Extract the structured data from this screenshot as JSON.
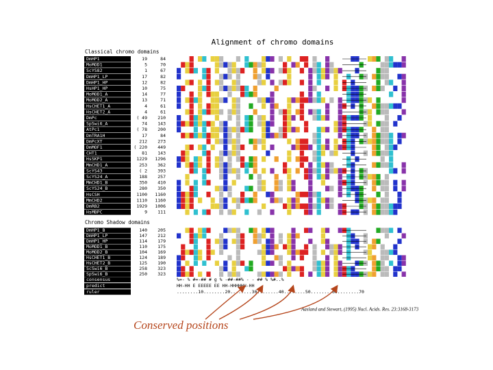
{
  "figure": {
    "title": "Alignment of chromo domains",
    "classical_label": "Classical chromo domains",
    "shadow_label": "Chromo Shadow domains",
    "classical_rows": [
      [
        "DmHP1",
        "19",
        "84"
      ],
      [
        "MoMOD1",
        "5",
        "70"
      ],
      [
        "ScYS82",
        "1",
        "67"
      ],
      [
        "DmHP1_LP",
        "17",
        "82"
      ],
      [
        "DmHP1_HP",
        "12",
        "82"
      ],
      [
        "HsHP1_HP",
        "10",
        "75"
      ],
      [
        "MoMOD1_A",
        "14",
        "77"
      ],
      [
        "MoMOD2_A",
        "13",
        "71"
      ],
      [
        "HsCHET1_A",
        "4",
        "61"
      ],
      [
        "HsCHET2_A",
        "4",
        "61"
      ],
      [
        "DmPc",
        "( 49",
        "210"
      ],
      [
        "SpSwi6_A",
        "74",
        "143"
      ],
      [
        "AtPc1",
        "( 78",
        "200"
      ],
      [
        "DmTRA1H",
        "17",
        "84"
      ],
      [
        "DmPcXT",
        "212",
        "273"
      ],
      [
        "DmMOF1",
        "( 220",
        "449"
      ],
      [
        "CHT1",
        "81",
        "143"
      ],
      [
        "HsSKP1",
        "1229",
        "1296"
      ],
      [
        "MmCHD1_A",
        "253",
        "362"
      ],
      [
        "ScYS43",
        "( 2",
        "393"
      ],
      [
        "ScYS24_A",
        "188",
        "257"
      ],
      [
        "MmCHD1_B",
        "350",
        "410"
      ],
      [
        "ScYS24_B",
        "280",
        "350"
      ],
      [
        "HsCSH",
        "1100",
        "1160"
      ],
      [
        "MmCHD2",
        "1110",
        "1160"
      ],
      [
        "DmRB2",
        "1929",
        "1006"
      ],
      [
        "HsMBPC",
        "9",
        "111"
      ]
    ],
    "shadow_rows": [
      [
        "DmHP1_B",
        "140",
        "205"
      ],
      [
        "DmHP1_LP",
        "147",
        "212"
      ],
      [
        "DmHP1_HP",
        "114",
        "179"
      ],
      [
        "MoMOD1_B",
        "110",
        "175"
      ],
      [
        "MoMOD2_B",
        "104",
        "169"
      ],
      [
        "HsCHET1_B",
        "124",
        "189"
      ],
      [
        "HsCHET2_B",
        "125",
        "190"
      ],
      [
        "ScSwi6_B",
        "258",
        "323"
      ],
      [
        "SpSwi6_B",
        "250",
        "323"
      ]
    ],
    "footer_rows": [
      [
        "consensus",
        "%=-  % #=-##      # g % -##-##% -  -    ##      % %#..%     "
      ],
      [
        "predict",
        "     HH-HH E          EEEEE  EE          HH-HHHHHH-HH"
      ],
      [
        "ruler",
        "........10........20........30........40........50........60........70"
      ]
    ],
    "citation": "Aasland and Stewart, (1995) Nucl. Acids. Res. 23:3168-3173",
    "callout": "Conserved positions"
  }
}
